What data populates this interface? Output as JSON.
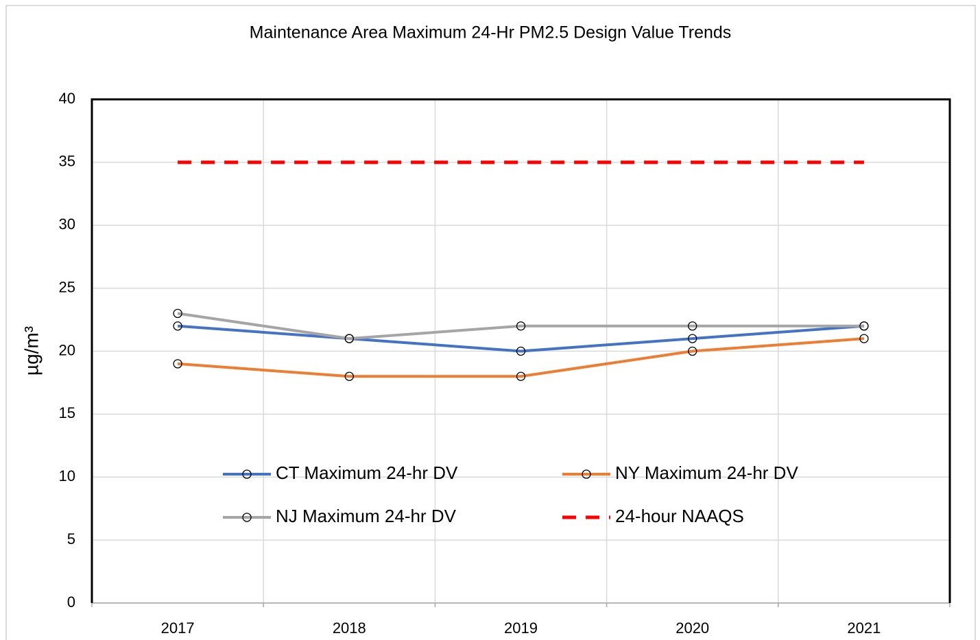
{
  "chart_data": {
    "type": "line",
    "title": "Maintenance Area Maximum 24-Hr PM2.5 Design Value Trends",
    "y_label": "µg/m³",
    "categories": [
      "2017",
      "2018",
      "2019",
      "2020",
      "2021"
    ],
    "series": [
      {
        "name": "CT Maximum 24-hr DV",
        "color": "#4472c4",
        "values": [
          22,
          21,
          20,
          21,
          22
        ],
        "markers": true,
        "dashed": false
      },
      {
        "name": "NY Maximum 24-hr DV",
        "color": "#ed7d31",
        "values": [
          19,
          18,
          18,
          20,
          21
        ],
        "markers": true,
        "dashed": false
      },
      {
        "name": "NJ Maximum 24-hr DV",
        "color": "#a5a5a5",
        "values": [
          23,
          21,
          22,
          22,
          22
        ],
        "markers": true,
        "dashed": false
      },
      {
        "name": "24-hour NAAQS",
        "color": "#ff0000",
        "values": [
          35,
          35,
          35,
          35,
          35
        ],
        "markers": false,
        "dashed": true
      }
    ],
    "ylim": [
      0,
      40
    ],
    "yticks": [
      0,
      5,
      10,
      15,
      20,
      25,
      30,
      35,
      40
    ],
    "grid": true
  }
}
